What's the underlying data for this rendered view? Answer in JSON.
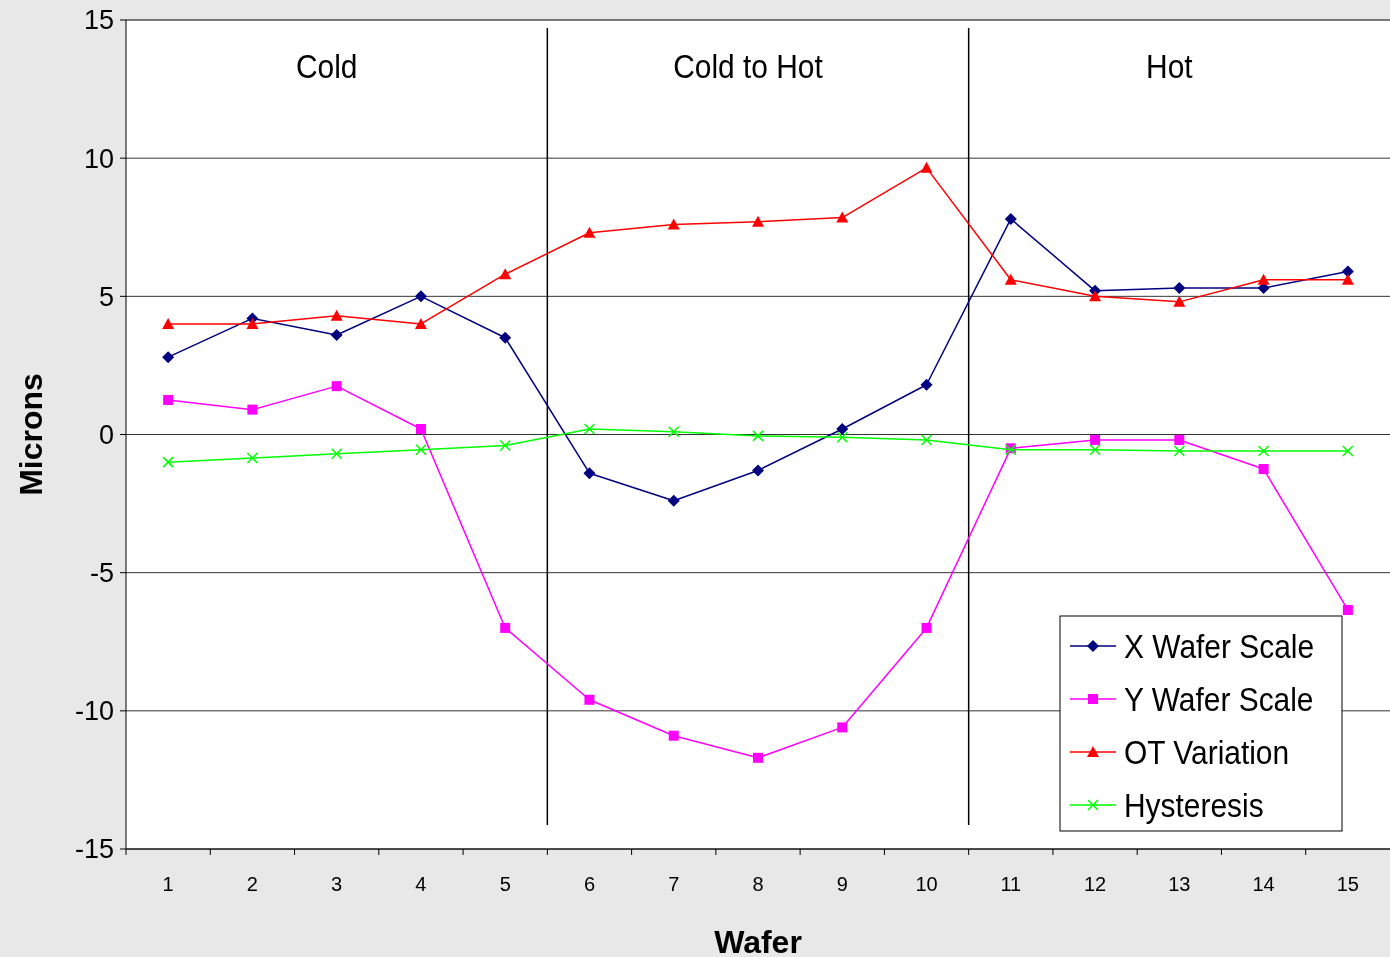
{
  "chart_data": {
    "type": "line",
    "xlabel": "Wafer",
    "ylabel": "Microns",
    "x": [
      1,
      2,
      3,
      4,
      5,
      6,
      7,
      8,
      9,
      10,
      11,
      12,
      13,
      14,
      15
    ],
    "xlim": [
      0.5,
      15.5
    ],
    "xticks": [
      1,
      2,
      3,
      4,
      5,
      6,
      7,
      8,
      9,
      10,
      11,
      12,
      13,
      14,
      15
    ],
    "ylim": [
      -15,
      15
    ],
    "yticks": [
      -15,
      -10,
      -5,
      0,
      5,
      10,
      15
    ],
    "grid": "y",
    "legend": "bottom right",
    "series": [
      {
        "name": "X Wafer Scale",
        "color": "#000080",
        "marker": "diamond",
        "values": [
          2.8,
          4.2,
          3.6,
          5.0,
          3.5,
          -1.4,
          -2.4,
          -1.3,
          0.2,
          1.8,
          7.8,
          5.2,
          5.3,
          5.3,
          5.9
        ]
      },
      {
        "name": "Y Wafer Scale",
        "color": "#ff00ff",
        "marker": "square",
        "values": [
          1.25,
          0.9,
          1.75,
          0.2,
          -7.0,
          -9.6,
          -10.9,
          -11.7,
          -10.6,
          -7.0,
          -0.5,
          -0.2,
          -0.2,
          -1.25,
          -6.35
        ]
      },
      {
        "name": "OT Variation",
        "color": "#ff0000",
        "marker": "triangle",
        "values": [
          4.0,
          4.0,
          4.3,
          4.0,
          5.8,
          7.3,
          7.6,
          7.7,
          7.85,
          9.65,
          5.6,
          5.0,
          4.8,
          5.6,
          5.6
        ]
      },
      {
        "name": "Hysteresis",
        "color": "#00ff00",
        "marker": "cross",
        "values": [
          -1.0,
          -0.85,
          -0.7,
          -0.55,
          -0.4,
          0.2,
          0.1,
          -0.05,
          -0.1,
          -0.2,
          -0.55,
          -0.55,
          -0.6,
          -0.6,
          -0.6
        ]
      }
    ],
    "ref_lines": [
      {
        "axis": "x",
        "value": 5.5,
        "color": "#000000"
      },
      {
        "axis": "x",
        "value": 10.5,
        "color": "#000000"
      }
    ],
    "annotations": [
      "Cold",
      "Cold to Hot",
      "Hot"
    ]
  }
}
